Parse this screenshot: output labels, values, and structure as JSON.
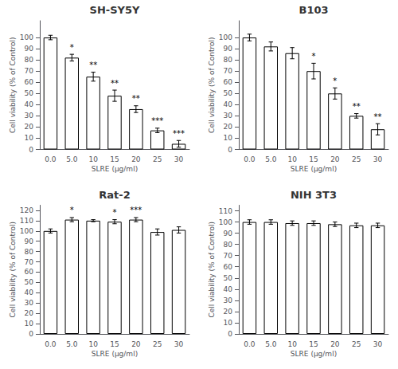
{
  "chart_data": [
    {
      "type": "bar",
      "title": "SH-SY5Y",
      "xlabel": "SLRE (μg/ml)",
      "ylabel": "Cell viability (% of Control)",
      "categories": [
        "0.0",
        "5.0",
        "10",
        "15",
        "20",
        "25",
        "30"
      ],
      "values": [
        100,
        82,
        65,
        48,
        36,
        17,
        5
      ],
      "errors": [
        2,
        3,
        4,
        5,
        3,
        2,
        3
      ],
      "annotations": [
        {
          "x": "5.0",
          "text": "*"
        },
        {
          "x": "10",
          "text": "**"
        },
        {
          "x": "15",
          "text": "**"
        },
        {
          "x": "20",
          "text": "**"
        },
        {
          "x": "25",
          "text": "***"
        },
        {
          "x": "30",
          "text": "***"
        }
      ],
      "color": "#ffffff",
      "ylim": [
        0,
        115
      ],
      "yticks": [
        0,
        10,
        20,
        30,
        40,
        50,
        60,
        70,
        80,
        90,
        100
      ],
      "grid": false
    },
    {
      "type": "bar",
      "title": "B103",
      "xlabel": "SLRE (μg/ml)",
      "ylabel": "Cell viability (% of Control)",
      "categories": [
        "0.0",
        "5.0",
        "10",
        "15",
        "20",
        "25",
        "30"
      ],
      "values": [
        100,
        92,
        86,
        70,
        50,
        30,
        18
      ],
      "errors": [
        3,
        4,
        5,
        7,
        5,
        2,
        5
      ],
      "annotations": [
        {
          "x": "15",
          "text": "*"
        },
        {
          "x": "20",
          "text": "*"
        },
        {
          "x": "25",
          "text": "**"
        },
        {
          "x": "30",
          "text": "**"
        }
      ],
      "color": "#ffffff",
      "ylim": [
        0,
        115
      ],
      "yticks": [
        0,
        10,
        20,
        30,
        40,
        50,
        60,
        70,
        80,
        90,
        100
      ],
      "grid": false
    },
    {
      "type": "bar",
      "title": "Rat-2",
      "xlabel": "SLRE (μg/ml)",
      "ylabel": "Cell viability (% of Control)",
      "categories": [
        "0.0",
        "5.0",
        "10",
        "15",
        "20",
        "25",
        "30"
      ],
      "values": [
        100,
        111,
        110,
        109,
        111,
        99,
        101
      ],
      "errors": [
        2,
        2,
        1,
        2,
        2,
        3,
        3
      ],
      "annotations": [
        {
          "x": "5.0",
          "text": "*"
        },
        {
          "x": "15",
          "text": "*"
        },
        {
          "x": "20",
          "text": "***"
        }
      ],
      "color": "#ffffff",
      "ylim": [
        0,
        125
      ],
      "yticks": [
        0,
        10,
        20,
        30,
        40,
        50,
        60,
        70,
        80,
        90,
        100,
        110,
        120
      ],
      "grid": false
    },
    {
      "type": "bar",
      "title": "NIH 3T3",
      "xlabel": "SLRE (μg/ml)",
      "ylabel": "Cell viability (% of Control)",
      "categories": [
        "0.0",
        "5.0",
        "10",
        "15",
        "20",
        "25",
        "30"
      ],
      "values": [
        100,
        100,
        99,
        99,
        98,
        97,
        97
      ],
      "errors": [
        2,
        2,
        2,
        2,
        2,
        2,
        2
      ],
      "color": "#ffffff",
      "ylim": [
        0,
        115
      ],
      "yticks": [
        0,
        10,
        20,
        30,
        40,
        50,
        60,
        70,
        80,
        90,
        100,
        110
      ],
      "grid": false
    }
  ]
}
